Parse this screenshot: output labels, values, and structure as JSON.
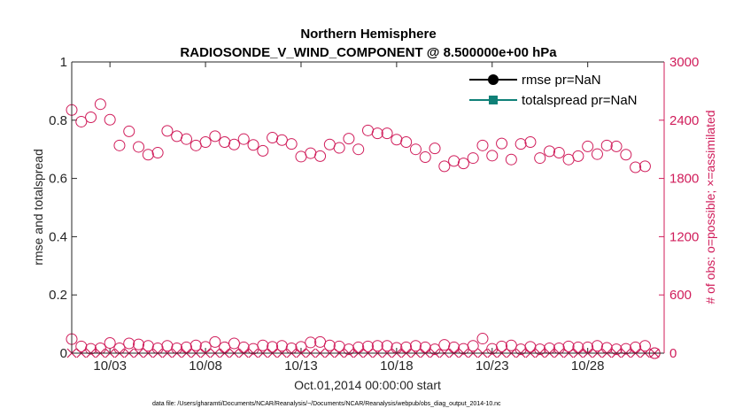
{
  "chart_data": {
    "type": "scatter",
    "title": "Northern Hemisphere",
    "subtitle": "RADIOSONDE_V_WIND_COMPONENT @ 8.500000e+00 hPa",
    "xlabel": "Oct.01,2014 00:00:00 start",
    "ylabel": "rmse and totalspread",
    "ylabel_right": "# of obs: o=possible; ×=assimilated",
    "footnote": "data file: /Users/gharamti/Documents/NCAR/Reanalysis/~/Documents/NCAR/Reanalysis/webpub/obs_diag_output_2014-10.nc",
    "xlim": [
      1.0,
      32.0
    ],
    "ylim": [
      0,
      1
    ],
    "ylim_right": [
      0,
      3000
    ],
    "x_ticks": [
      3,
      8,
      13,
      18,
      23,
      28
    ],
    "x_tick_labels": [
      "10/03",
      "10/08",
      "10/13",
      "10/18",
      "10/23",
      "10/28"
    ],
    "y_ticks": [
      0,
      0.2,
      0.4,
      0.6,
      0.8,
      1
    ],
    "y_tick_labels": [
      "0",
      "0.2",
      "0.4",
      "0.6",
      "0.8",
      "1"
    ],
    "y_ticks_right": [
      0,
      600,
      1200,
      1800,
      2400,
      3000
    ],
    "y_tick_labels_right": [
      "0",
      "600",
      "1200",
      "1800",
      "2400",
      "3000"
    ],
    "legend": [
      "rmse pr=NaN",
      "totalspread pr=NaN"
    ],
    "legend_position": "top-right",
    "colors": {
      "rmse": "#000000",
      "totalspread": "#0f8077",
      "obs": "#d01c5a",
      "axis": "#262626"
    },
    "series": [
      {
        "name": "possible obs (o)",
        "axis": "right",
        "x": [
          1.0,
          1.5,
          2.0,
          2.5,
          3.0,
          3.5,
          4.0,
          4.5,
          5.0,
          5.5,
          6.0,
          6.5,
          7.0,
          7.5,
          8.0,
          8.5,
          9.0,
          9.5,
          10.0,
          10.5,
          11.0,
          11.5,
          12.0,
          12.5,
          13.0,
          13.5,
          14.0,
          14.5,
          15.0,
          15.5,
          16.0,
          16.5,
          17.0,
          17.5,
          18.0,
          18.5,
          19.0,
          19.5,
          20.0,
          20.5,
          21.0,
          21.5,
          22.0,
          22.5,
          23.0,
          23.5,
          24.0,
          24.5,
          25.0,
          25.5,
          26.0,
          26.5,
          27.0,
          27.5,
          28.0,
          28.5,
          29.0,
          29.5,
          30.0,
          30.5,
          31.0,
          31.5
        ],
        "values": [
          2505,
          2385,
          2430,
          2565,
          2405,
          2140,
          2285,
          2125,
          2045,
          2065,
          2290,
          2235,
          2205,
          2140,
          2175,
          2235,
          2175,
          2150,
          2205,
          2145,
          2085,
          2220,
          2195,
          2155,
          2025,
          2060,
          2030,
          2150,
          2115,
          2210,
          2100,
          2295,
          2265,
          2265,
          2200,
          2175,
          2100,
          2020,
          2110,
          1925,
          1980,
          1955,
          2010,
          2140,
          2035,
          2160,
          1995,
          2155,
          2175,
          2010,
          2080,
          2065,
          1995,
          2030,
          2130,
          2050,
          2140,
          2130,
          2045,
          1915,
          1925,
          0
        ]
      },
      {
        "name": "possible obs (o) low",
        "axis": "right",
        "x": [
          1.0,
          1.5,
          2.0,
          2.5,
          3.0,
          3.5,
          4.0,
          4.5,
          5.0,
          5.5,
          6.0,
          6.5,
          7.0,
          7.5,
          8.0,
          8.5,
          9.0,
          9.5,
          10.0,
          10.5,
          11.0,
          11.5,
          12.0,
          12.5,
          13.0,
          13.5,
          14.0,
          14.5,
          15.0,
          15.5,
          16.0,
          16.5,
          17.0,
          17.5,
          18.0,
          18.5,
          19.0,
          19.5,
          20.0,
          20.5,
          21.0,
          21.5,
          22.0,
          22.5,
          23.0,
          23.5,
          24.0,
          24.5,
          25.0,
          25.5,
          26.0,
          26.5,
          27.0,
          27.5,
          28.0,
          28.5,
          29.0,
          29.5,
          30.0,
          30.5,
          31.0,
          31.5
        ],
        "values": [
          145,
          70,
          45,
          50,
          105,
          50,
          100,
          90,
          75,
          50,
          75,
          50,
          60,
          80,
          65,
          115,
          60,
          100,
          60,
          45,
          80,
          65,
          75,
          50,
          65,
          110,
          115,
          80,
          70,
          40,
          60,
          70,
          75,
          75,
          55,
          60,
          75,
          60,
          40,
          85,
          60,
          45,
          75,
          150,
          45,
          70,
          80,
          40,
          65,
          40,
          50,
          50,
          70,
          60,
          60,
          75,
          55,
          40,
          45,
          60,
          75,
          0
        ]
      },
      {
        "name": "assimilated obs (×)",
        "axis": "right",
        "x": [
          1.0,
          1.5,
          2.0,
          2.5,
          3.0,
          3.5,
          4.0,
          4.5,
          5.0,
          5.5,
          6.0,
          6.5,
          7.0,
          7.5,
          8.0,
          8.5,
          9.0,
          9.5,
          10.0,
          10.5,
          11.0,
          11.5,
          12.0,
          12.5,
          13.0,
          13.5,
          14.0,
          14.5,
          15.0,
          15.5,
          16.0,
          16.5,
          17.0,
          17.5,
          18.0,
          18.5,
          19.0,
          19.5,
          20.0,
          20.5,
          21.0,
          21.5,
          22.0,
          22.5,
          23.0,
          23.5,
          24.0,
          24.5,
          25.0,
          25.5,
          26.0,
          26.5,
          27.0,
          27.5,
          28.0,
          28.5,
          29.0,
          29.5,
          30.0,
          30.5,
          31.0,
          31.5
        ],
        "values": [
          0,
          0,
          0,
          0,
          0,
          0,
          0,
          0,
          0,
          0,
          0,
          0,
          0,
          0,
          0,
          0,
          0,
          0,
          0,
          0,
          0,
          0,
          0,
          0,
          0,
          0,
          0,
          0,
          0,
          0,
          0,
          0,
          0,
          0,
          0,
          0,
          0,
          0,
          0,
          0,
          0,
          0,
          0,
          0,
          0,
          0,
          0,
          0,
          0,
          0,
          0,
          0,
          0,
          0,
          0,
          0,
          0,
          0,
          0,
          0,
          0,
          0
        ]
      }
    ]
  }
}
